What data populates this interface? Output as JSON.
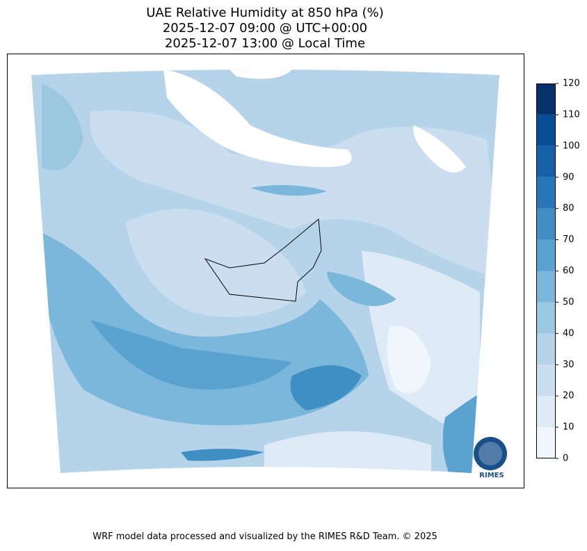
{
  "header": {
    "title_lines": [
      "UAE Relative Humidity at 850 hPa (%)",
      "2025-12-07 09:00 @ UTC+00:00",
      "2025-12-07 13:00 @ Local Time"
    ]
  },
  "colorbar": {
    "lim": [
      0,
      120
    ],
    "ticks": [
      0,
      10,
      20,
      30,
      40,
      50,
      60,
      70,
      80,
      90,
      100,
      110,
      120
    ],
    "colors": [
      "#f0f6fc",
      "#deebf7",
      "#cadef0",
      "#b5d4e9",
      "#9ac8e0",
      "#7ab7da",
      "#5aa2cf",
      "#3f8fc5",
      "#2676b8",
      "#1561a9",
      "#084d96",
      "#08306b"
    ]
  },
  "logo": {
    "text": "RIMES"
  },
  "footer": {
    "text": "WRF model data processed and visualized by the RIMES R&D Team. © 2025"
  }
}
